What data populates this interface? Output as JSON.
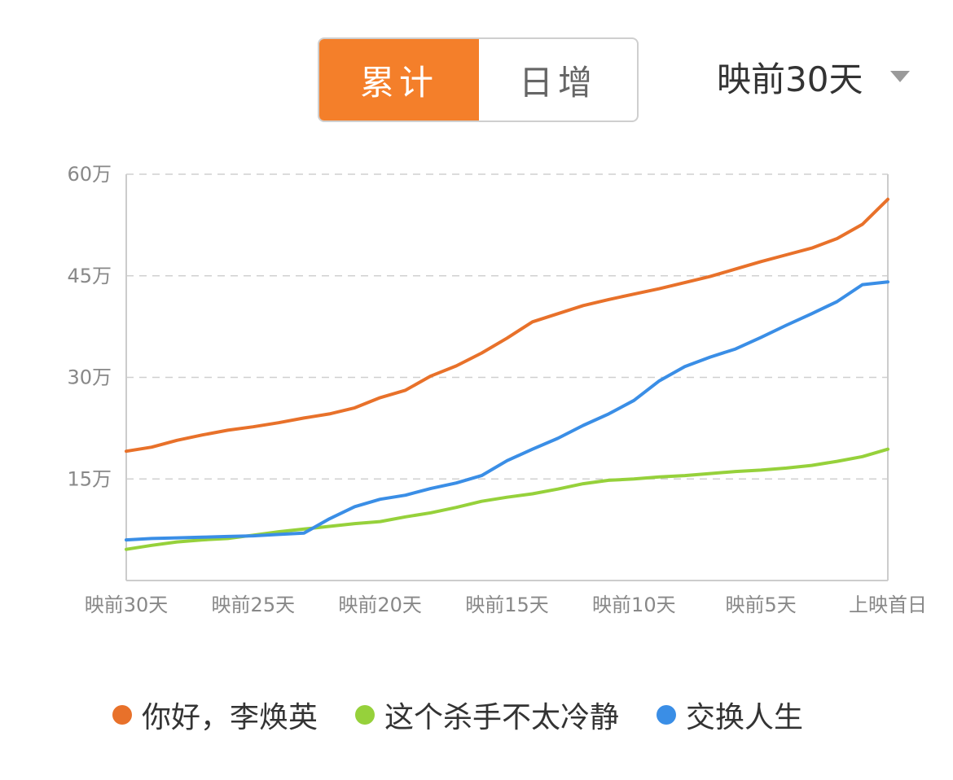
{
  "controls": {
    "tabs": [
      {
        "label": "累计",
        "active": true
      },
      {
        "label": "日增",
        "active": false
      }
    ],
    "range": {
      "label": "映前30天",
      "icon": "caret-down-icon"
    }
  },
  "colors": {
    "accent": "#f47f2a",
    "grid": "#d0d0d0",
    "axis_text": "#888888"
  },
  "chart_data": {
    "type": "line",
    "y_ticks": [
      "60万",
      "45万",
      "30万",
      "15万"
    ],
    "ylim": [
      0,
      60
    ],
    "y_unit": "万",
    "x_tick_labels": [
      "映前30天",
      "映前25天",
      "映前20天",
      "映前15天",
      "映前10天",
      "映前5天",
      "上映首日"
    ],
    "x": [
      "映前30天",
      "映前29天",
      "映前28天",
      "映前27天",
      "映前26天",
      "映前25天",
      "映前24天",
      "映前23天",
      "映前22天",
      "映前21天",
      "映前20天",
      "映前19天",
      "映前18天",
      "映前17天",
      "映前16天",
      "映前15天",
      "映前14天",
      "映前13天",
      "映前12天",
      "映前11天",
      "映前10天",
      "映前9天",
      "映前8天",
      "映前7天",
      "映前6天",
      "映前5天",
      "映前4天",
      "映前3天",
      "映前2天",
      "映前1天",
      "上映首日"
    ],
    "grid": true,
    "legend_position": "bottom",
    "series": [
      {
        "name": "你好，李焕英",
        "color": "#e8712a",
        "values": [
          19.1,
          19.7,
          20.7,
          21.5,
          22.2,
          22.7,
          23.3,
          24.0,
          24.6,
          25.5,
          27.0,
          28.1,
          30.2,
          31.7,
          33.6,
          35.8,
          38.2,
          39.4,
          40.6,
          41.5,
          42.3,
          43.1,
          44.0,
          44.9,
          46.0,
          47.1,
          48.1,
          49.1,
          50.5,
          52.6,
          56.3
        ]
      },
      {
        "name": "这个杀手不太冷静",
        "color": "#96d13b",
        "values": [
          4.6,
          5.2,
          5.7,
          6.0,
          6.2,
          6.7,
          7.2,
          7.6,
          8.0,
          8.4,
          8.7,
          9.4,
          10.0,
          10.8,
          11.7,
          12.3,
          12.8,
          13.5,
          14.3,
          14.8,
          15.0,
          15.3,
          15.5,
          15.8,
          16.1,
          16.3,
          16.6,
          17.0,
          17.6,
          18.3,
          19.4
        ]
      },
      {
        "name": "交换人生",
        "color": "#3a8ee6",
        "values": [
          6.0,
          6.2,
          6.3,
          6.4,
          6.5,
          6.6,
          6.8,
          7.0,
          9.1,
          10.9,
          12.0,
          12.6,
          13.6,
          14.4,
          15.5,
          17.7,
          19.4,
          21.0,
          22.9,
          24.6,
          26.6,
          29.5,
          31.6,
          33.0,
          34.2,
          35.9,
          37.7,
          39.4,
          41.2,
          43.7,
          44.1
        ]
      }
    ]
  }
}
